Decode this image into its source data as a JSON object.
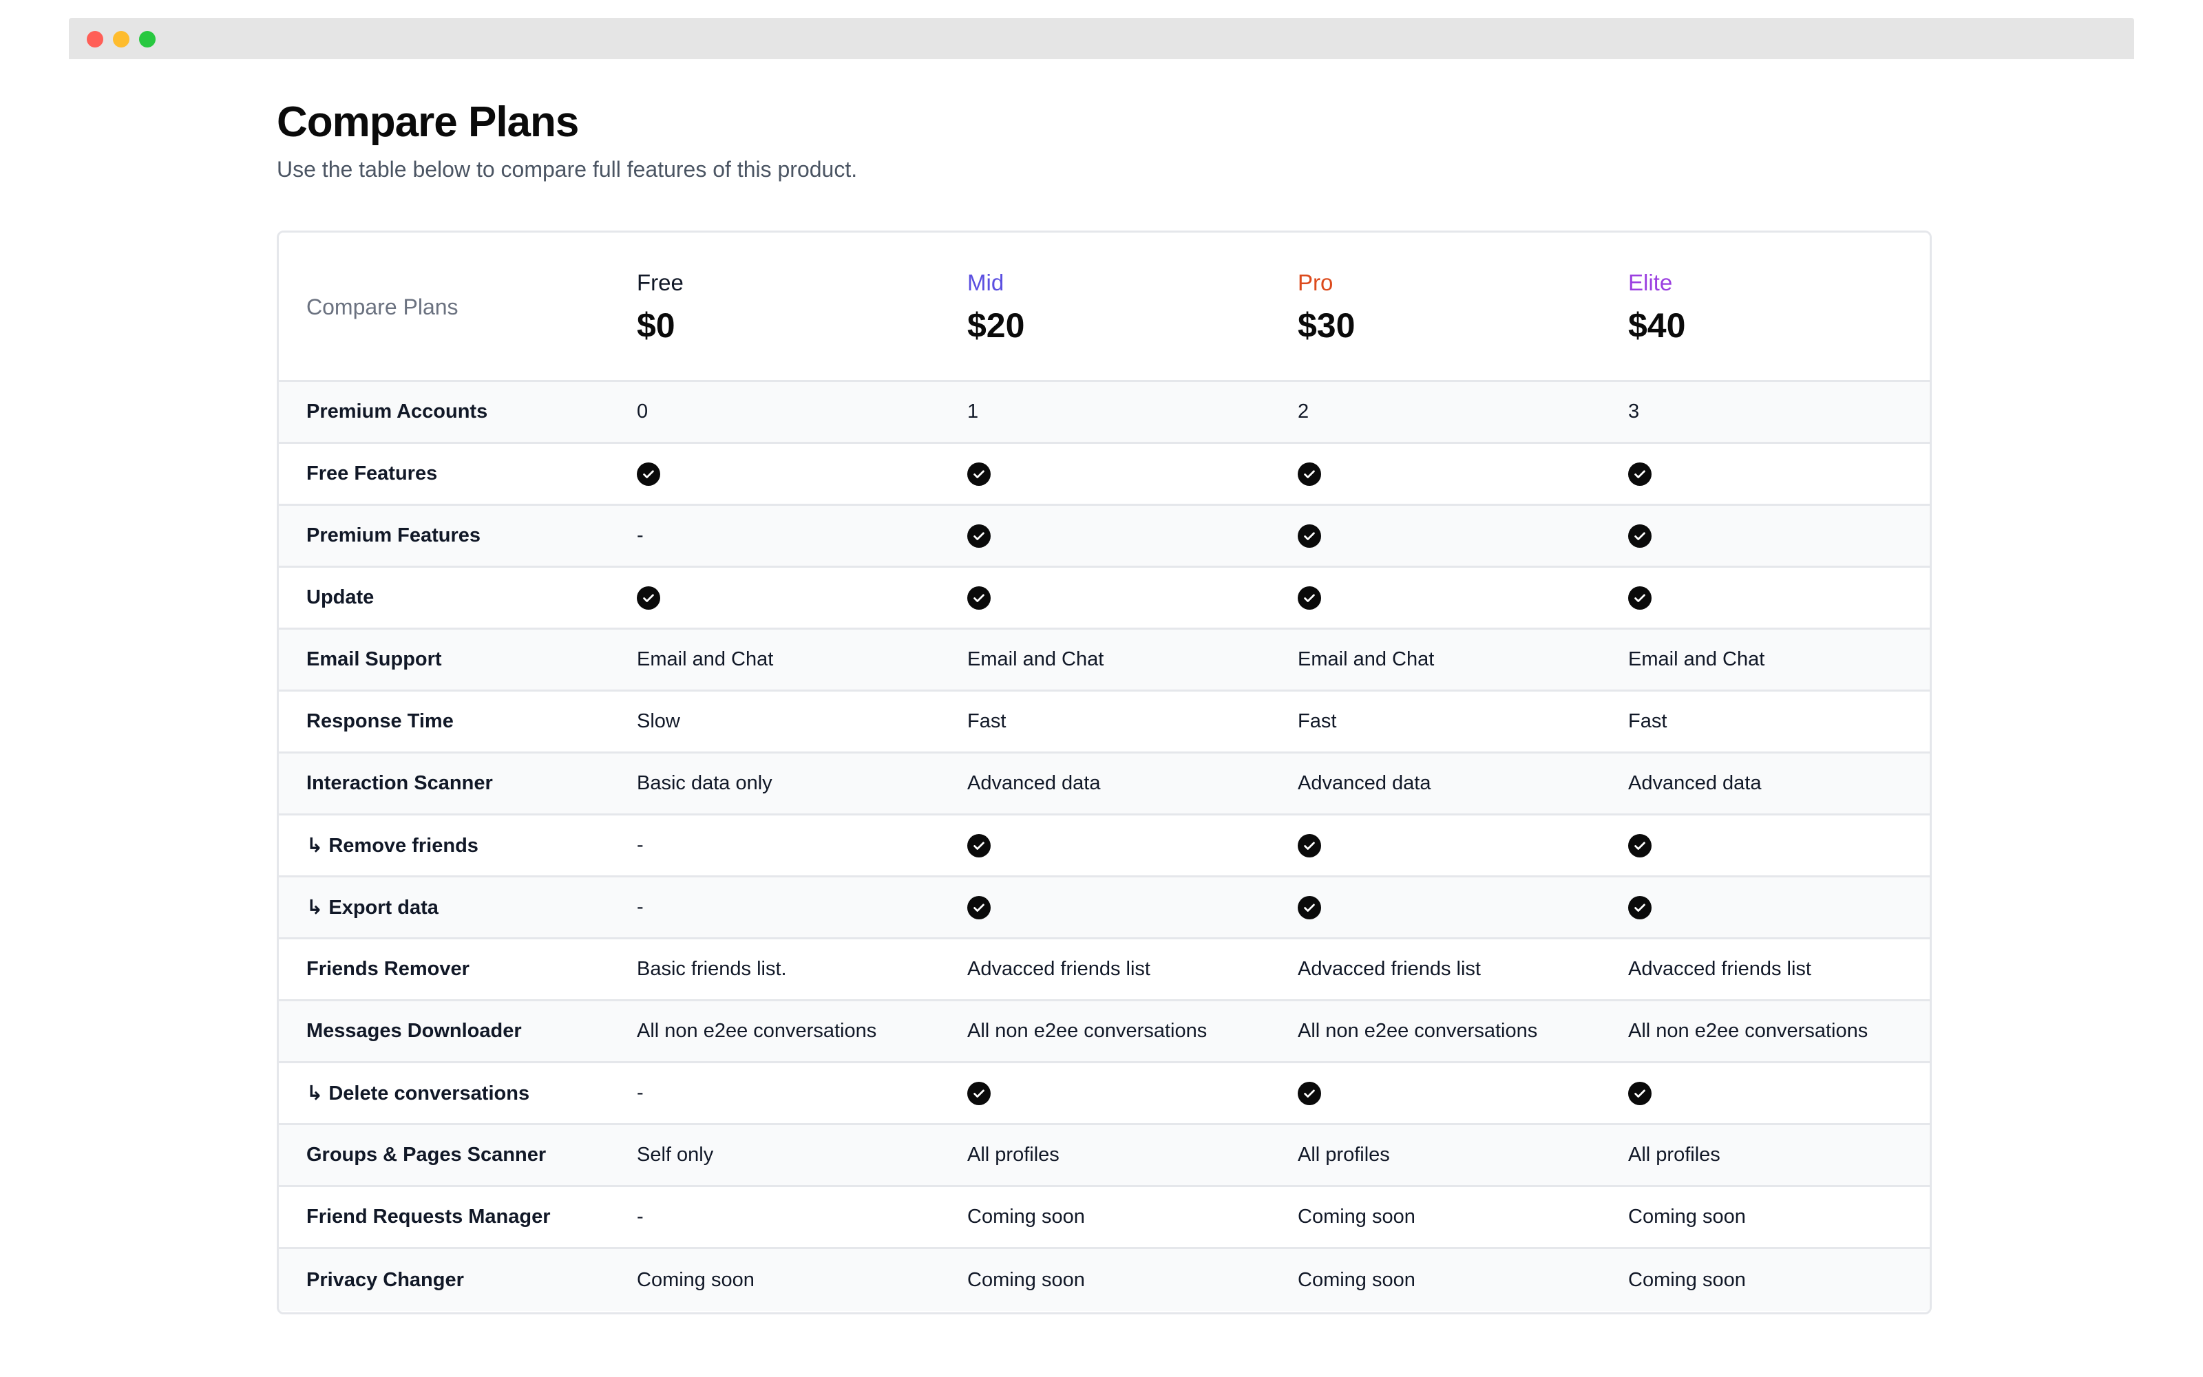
{
  "page": {
    "title": "Compare Plans",
    "subtitle": "Use the table below to compare full features of this product."
  },
  "table": {
    "header_label": "Compare Plans",
    "plans": [
      {
        "name": "Free",
        "price": "$0",
        "color": "#111827"
      },
      {
        "name": "Mid",
        "price": "$20",
        "color": "#5b4fe0"
      },
      {
        "name": "Pro",
        "price": "$30",
        "color": "#dc4a1c"
      },
      {
        "name": "Elite",
        "price": "$40",
        "color": "#9b3fe0"
      }
    ],
    "check_icon": "check-circle-icon",
    "rows": [
      {
        "feature": "Premium Accounts",
        "values": [
          "0",
          "1",
          "2",
          "3"
        ]
      },
      {
        "feature": "Free Features",
        "values": [
          "check",
          "check",
          "check",
          "check"
        ]
      },
      {
        "feature": "Premium Features",
        "values": [
          "-",
          "check",
          "check",
          "check"
        ]
      },
      {
        "feature": "Update",
        "values": [
          "check",
          "check",
          "check",
          "check"
        ]
      },
      {
        "feature": "Email Support",
        "values": [
          "Email and Chat",
          "Email and Chat",
          "Email and Chat",
          "Email and Chat"
        ]
      },
      {
        "feature": "Response Time",
        "values": [
          "Slow",
          "Fast",
          "Fast",
          "Fast"
        ]
      },
      {
        "feature": "Interaction Scanner",
        "values": [
          "Basic data only",
          "Advanced data",
          "Advanced data",
          "Advanced data"
        ]
      },
      {
        "feature": "↳ Remove friends",
        "values": [
          "-",
          "check",
          "check",
          "check"
        ]
      },
      {
        "feature": "↳ Export data",
        "values": [
          "-",
          "check",
          "check",
          "check"
        ]
      },
      {
        "feature": "Friends Remover",
        "values": [
          "Basic friends list.",
          "Advacced friends list",
          "Advacced friends list",
          "Advacced friends list"
        ]
      },
      {
        "feature": "Messages Downloader",
        "values": [
          "All non e2ee conversations",
          "All non e2ee conversations",
          "All non e2ee conversations",
          "All non e2ee conversations"
        ]
      },
      {
        "feature": "↳ Delete conversations",
        "values": [
          "-",
          "check",
          "check",
          "check"
        ]
      },
      {
        "feature": "Groups & Pages Scanner",
        "values": [
          "Self only",
          "All profiles",
          "All profiles",
          "All profiles"
        ]
      },
      {
        "feature": "Friend Requests Manager",
        "values": [
          "-",
          "Coming soon",
          "Coming soon",
          "Coming soon"
        ]
      },
      {
        "feature": "Privacy Changer",
        "values": [
          "Coming soon",
          "Coming soon",
          "Coming soon",
          "Coming soon"
        ]
      }
    ]
  }
}
